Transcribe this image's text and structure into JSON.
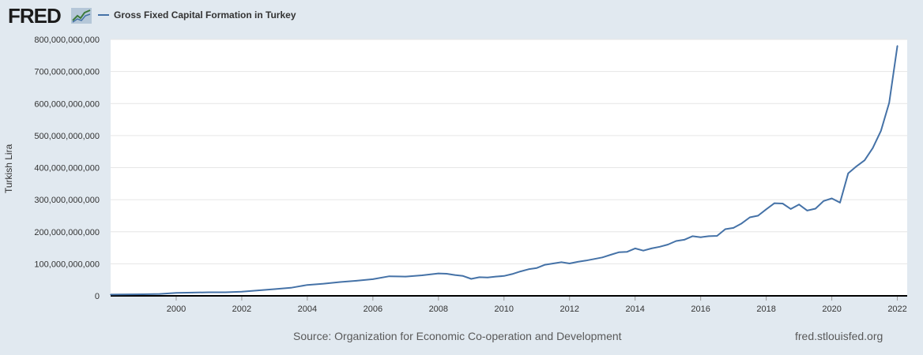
{
  "header": {
    "logo_text": "FRED",
    "logo_mark": "®",
    "logo_icon": "chart-line-icon"
  },
  "colors": {
    "series": "#4572a7",
    "background": "#e1e9f0",
    "plot_bg": "#ffffff",
    "grid": "#e6e6e6"
  },
  "chart_data": {
    "type": "line",
    "title": "",
    "xlabel": "",
    "ylabel": "Turkish Lira",
    "ylim": [
      0,
      800000000000
    ],
    "xlim": [
      1998.0,
      2022.3
    ],
    "grid": true,
    "legend_position": "top-left",
    "y_ticks": [
      {
        "value": 0,
        "label": "0"
      },
      {
        "value": 100000000000,
        "label": "100,000,000,000"
      },
      {
        "value": 200000000000,
        "label": "200,000,000,000"
      },
      {
        "value": 300000000000,
        "label": "300,000,000,000"
      },
      {
        "value": 400000000000,
        "label": "400,000,000,000"
      },
      {
        "value": 500000000000,
        "label": "500,000,000,000"
      },
      {
        "value": 600000000000,
        "label": "600,000,000,000"
      },
      {
        "value": 700000000000,
        "label": "700,000,000,000"
      },
      {
        "value": 800000000000,
        "label": "800,000,000,000"
      }
    ],
    "x_ticks": [
      {
        "value": 2000,
        "label": "2000"
      },
      {
        "value": 2002,
        "label": "2002"
      },
      {
        "value": 2004,
        "label": "2004"
      },
      {
        "value": 2006,
        "label": "2006"
      },
      {
        "value": 2008,
        "label": "2008"
      },
      {
        "value": 2010,
        "label": "2010"
      },
      {
        "value": 2012,
        "label": "2012"
      },
      {
        "value": 2014,
        "label": "2014"
      },
      {
        "value": 2016,
        "label": "2016"
      },
      {
        "value": 2018,
        "label": "2018"
      },
      {
        "value": 2020,
        "label": "2020"
      },
      {
        "value": 2022,
        "label": "2022"
      }
    ],
    "series": [
      {
        "name": "Gross Fixed Capital Formation in Turkey",
        "points": [
          [
            1998.0,
            4000000000
          ],
          [
            1999.0,
            5000000000
          ],
          [
            1999.5,
            6000000000
          ],
          [
            2000.0,
            9000000000
          ],
          [
            2000.5,
            10000000000
          ],
          [
            2001.0,
            11000000000
          ],
          [
            2001.5,
            11000000000
          ],
          [
            2002.0,
            13000000000
          ],
          [
            2002.5,
            17000000000
          ],
          [
            2003.0,
            21000000000
          ],
          [
            2003.5,
            25000000000
          ],
          [
            2004.0,
            34000000000
          ],
          [
            2004.5,
            38000000000
          ],
          [
            2005.0,
            43000000000
          ],
          [
            2005.5,
            47000000000
          ],
          [
            2006.0,
            52000000000
          ],
          [
            2006.5,
            61000000000
          ],
          [
            2007.0,
            60000000000
          ],
          [
            2007.5,
            64000000000
          ],
          [
            2008.0,
            70000000000
          ],
          [
            2008.25,
            69000000000
          ],
          [
            2008.5,
            65000000000
          ],
          [
            2008.75,
            62000000000
          ],
          [
            2009.0,
            53000000000
          ],
          [
            2009.25,
            58000000000
          ],
          [
            2009.5,
            57000000000
          ],
          [
            2009.75,
            60000000000
          ],
          [
            2010.0,
            62000000000
          ],
          [
            2010.25,
            68000000000
          ],
          [
            2010.5,
            76000000000
          ],
          [
            2010.75,
            83000000000
          ],
          [
            2011.0,
            87000000000
          ],
          [
            2011.25,
            97000000000
          ],
          [
            2011.5,
            101000000000
          ],
          [
            2011.75,
            105000000000
          ],
          [
            2012.0,
            101000000000
          ],
          [
            2012.25,
            106000000000
          ],
          [
            2012.5,
            110000000000
          ],
          [
            2012.75,
            115000000000
          ],
          [
            2013.0,
            120000000000
          ],
          [
            2013.25,
            128000000000
          ],
          [
            2013.5,
            136000000000
          ],
          [
            2013.75,
            137000000000
          ],
          [
            2014.0,
            148000000000
          ],
          [
            2014.25,
            141000000000
          ],
          [
            2014.5,
            148000000000
          ],
          [
            2014.75,
            153000000000
          ],
          [
            2015.0,
            160000000000
          ],
          [
            2015.25,
            171000000000
          ],
          [
            2015.5,
            175000000000
          ],
          [
            2015.75,
            186000000000
          ],
          [
            2016.0,
            183000000000
          ],
          [
            2016.25,
            186000000000
          ],
          [
            2016.5,
            187000000000
          ],
          [
            2016.75,
            208000000000
          ],
          [
            2017.0,
            212000000000
          ],
          [
            2017.25,
            226000000000
          ],
          [
            2017.5,
            245000000000
          ],
          [
            2017.75,
            250000000000
          ],
          [
            2018.0,
            270000000000
          ],
          [
            2018.25,
            289000000000
          ],
          [
            2018.5,
            288000000000
          ],
          [
            2018.75,
            271000000000
          ],
          [
            2019.0,
            285000000000
          ],
          [
            2019.25,
            266000000000
          ],
          [
            2019.5,
            272000000000
          ],
          [
            2019.75,
            296000000000
          ],
          [
            2020.0,
            304000000000
          ],
          [
            2020.25,
            291000000000
          ],
          [
            2020.5,
            382000000000
          ],
          [
            2020.75,
            404000000000
          ],
          [
            2021.0,
            423000000000
          ],
          [
            2021.25,
            461000000000
          ],
          [
            2021.5,
            515000000000
          ],
          [
            2021.75,
            602000000000
          ],
          [
            2022.0,
            780000000000
          ]
        ]
      }
    ]
  },
  "footer": {
    "source": "Source: Organization for Economic Co-operation and Development",
    "credit": "fred.stlouisfed.org"
  }
}
